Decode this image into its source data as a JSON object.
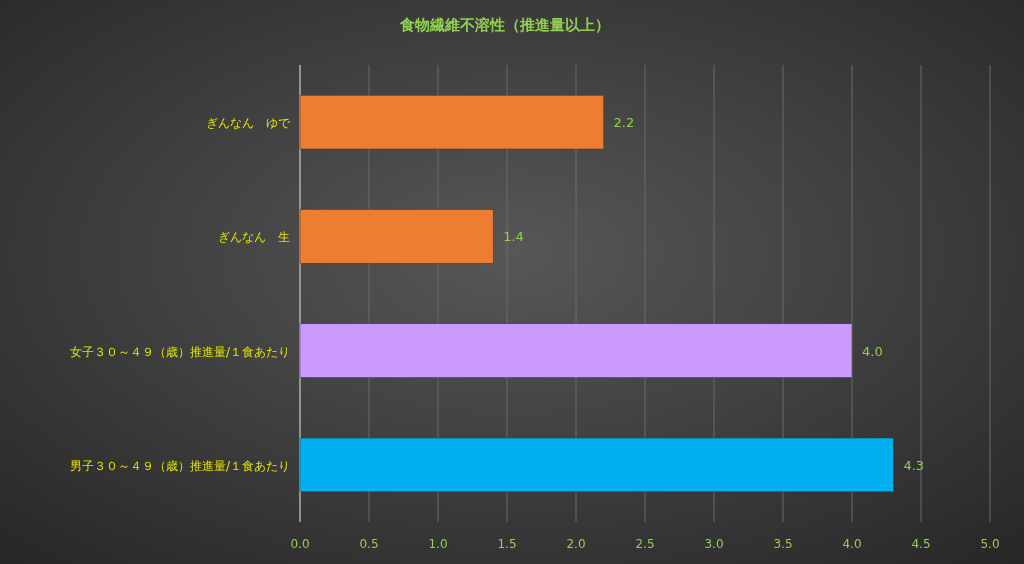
{
  "chart_data": {
    "type": "bar",
    "orientation": "horizontal",
    "title": "食物繊維不溶性（推進量以上）",
    "categories": [
      "ぎんなん　ゆで",
      "ぎんなん　生",
      "女子３０～４９（歳）推進量/１食あたり",
      "男子３０～４９（歳）推進量/１食あたり"
    ],
    "values": [
      2.2,
      1.4,
      4.0,
      4.3
    ],
    "value_labels": [
      "2.2",
      "1.4",
      "4.0",
      "4.3"
    ],
    "colors": [
      "#ed7d31",
      "#ed7d31",
      "#cc99ff",
      "#00b0f0"
    ],
    "xlim": [
      0,
      5
    ],
    "xticks": [
      {
        "value": 0,
        "label": "0.0"
      },
      {
        "value": 0.5,
        "label": "0.5"
      },
      {
        "value": 1,
        "label": "1.0"
      },
      {
        "value": 1.5,
        "label": "1.5"
      },
      {
        "value": 2,
        "label": "2.0"
      },
      {
        "value": 2.5,
        "label": "2.5"
      },
      {
        "value": 3,
        "label": "3.0"
      },
      {
        "value": 3.5,
        "label": "3.5"
      },
      {
        "value": 4,
        "label": "4.0"
      },
      {
        "value": 4.5,
        "label": "4.5"
      },
      {
        "value": 5,
        "label": "5.0"
      }
    ],
    "grid": "x"
  }
}
